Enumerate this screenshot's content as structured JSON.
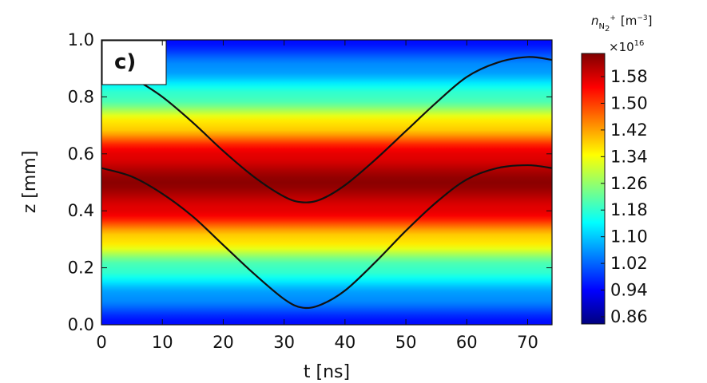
{
  "chart_data": {
    "type": "heatmap",
    "panel_label": "c)",
    "xlabel": "t [ns]",
    "ylabel": "z [mm]",
    "xlim": [
      0,
      74
    ],
    "ylim": [
      0,
      1.0
    ],
    "x_ticks": [
      "0",
      "10",
      "20",
      "30",
      "40",
      "50",
      "60",
      "70"
    ],
    "y_ticks": [
      "0.0",
      "0.2",
      "0.4",
      "0.6",
      "0.8",
      "1.0"
    ],
    "x_tick_values": [
      0,
      10,
      20,
      30,
      40,
      50,
      60,
      70
    ],
    "y_tick_values": [
      0,
      0.2,
      0.4,
      0.6,
      0.8,
      1.0
    ],
    "colorbar": {
      "title_base": "n",
      "title_sub": "N",
      "title_sub2": "2",
      "title_sup": "+",
      "title_unit": "[m",
      "title_unit_sup": "−3",
      "title_unit_close": "]",
      "scale_base": "×10",
      "scale_exp": "16",
      "ticks": [
        "0.86",
        "0.94",
        "1.02",
        "1.10",
        "1.18",
        "1.26",
        "1.34",
        "1.42",
        "1.50",
        "1.58"
      ],
      "tick_values": [
        0.86,
        0.94,
        1.02,
        1.1,
        1.18,
        1.26,
        1.34,
        1.42,
        1.5,
        1.58
      ],
      "range": [
        0.835,
        1.63
      ],
      "colormap": "jet"
    },
    "field": {
      "description_values": "density varies with z only, peak at z=0.5",
      "z_profile": [
        {
          "z": 0.0,
          "value": 0.94
        },
        {
          "z": 0.1,
          "value": 1.05
        },
        {
          "z": 0.2,
          "value": 1.18
        },
        {
          "z": 0.3,
          "value": 1.36
        },
        {
          "z": 0.4,
          "value": 1.55
        },
        {
          "z": 0.5,
          "value": 1.62
        },
        {
          "z": 0.6,
          "value": 1.55
        },
        {
          "z": 0.7,
          "value": 1.36
        },
        {
          "z": 0.8,
          "value": 1.18
        },
        {
          "z": 0.9,
          "value": 1.05
        },
        {
          "z": 1.0,
          "value": 0.94
        }
      ]
    },
    "series": [
      {
        "color": "#111111",
        "x": [
          0,
          5,
          10,
          15,
          20,
          25,
          30,
          33,
          36,
          40,
          45,
          50,
          55,
          60,
          65,
          70,
          74
        ],
        "y": [
          0.55,
          0.52,
          0.46,
          0.38,
          0.28,
          0.18,
          0.09,
          0.06,
          0.07,
          0.12,
          0.22,
          0.33,
          0.43,
          0.51,
          0.55,
          0.56,
          0.55
        ]
      },
      {
        "color": "#111111",
        "x": [
          0,
          5,
          10,
          15,
          20,
          25,
          30,
          33,
          36,
          40,
          45,
          50,
          55,
          60,
          65,
          70,
          74
        ],
        "y": [
          0.94,
          0.87,
          0.8,
          0.71,
          0.61,
          0.52,
          0.45,
          0.43,
          0.44,
          0.49,
          0.58,
          0.68,
          0.78,
          0.87,
          0.92,
          0.94,
          0.93
        ]
      }
    ],
    "grid": false,
    "legend": "none"
  }
}
